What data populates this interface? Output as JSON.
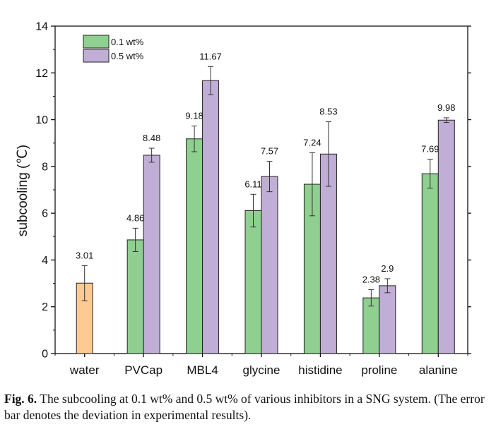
{
  "chart_data": {
    "type": "bar",
    "ylabel": "subcooling (℃)",
    "ylim": [
      0,
      14
    ],
    "yticks": [
      "0",
      "2",
      "4",
      "6",
      "8",
      "10",
      "12",
      "14"
    ],
    "categories": [
      "water",
      "PVCap",
      "MBL4",
      "glycine",
      "histidine",
      "proline",
      "alanine"
    ],
    "series": [
      {
        "name": "water",
        "legend": false,
        "color": "#fdca94",
        "values": [
          3.01,
          null,
          null,
          null,
          null,
          null,
          null
        ],
        "labels": [
          "3.01",
          null,
          null,
          null,
          null,
          null,
          null
        ],
        "errors": [
          0.75,
          null,
          null,
          null,
          null,
          null,
          null
        ]
      },
      {
        "name": "0.1 wt%",
        "legend": true,
        "color": "#8fcf8f",
        "values": [
          null,
          4.86,
          9.18,
          6.11,
          7.24,
          2.38,
          7.69
        ],
        "labels": [
          null,
          "4.86",
          "9.18",
          "6.11",
          "7.24",
          "2.38",
          "7.69"
        ],
        "errors": [
          null,
          0.5,
          0.55,
          0.7,
          1.35,
          0.35,
          0.62
        ]
      },
      {
        "name": "0.5 wt%",
        "legend": true,
        "color": "#c0aed6",
        "values": [
          null,
          8.48,
          11.67,
          7.57,
          8.53,
          2.9,
          9.98
        ],
        "labels": [
          null,
          "8.48",
          "11.67",
          "7.57",
          "8.53",
          "2.9",
          "9.98"
        ],
        "errors": [
          null,
          0.3,
          0.6,
          0.65,
          1.38,
          0.3,
          0.1
        ]
      }
    ]
  },
  "caption": {
    "label": "Fig. 6.",
    "text": "The subcooling at 0.1 wt% and 0.5 wt% of various inhibitors in a SNG system. (The error bar denotes the deviation in experimental results)."
  }
}
